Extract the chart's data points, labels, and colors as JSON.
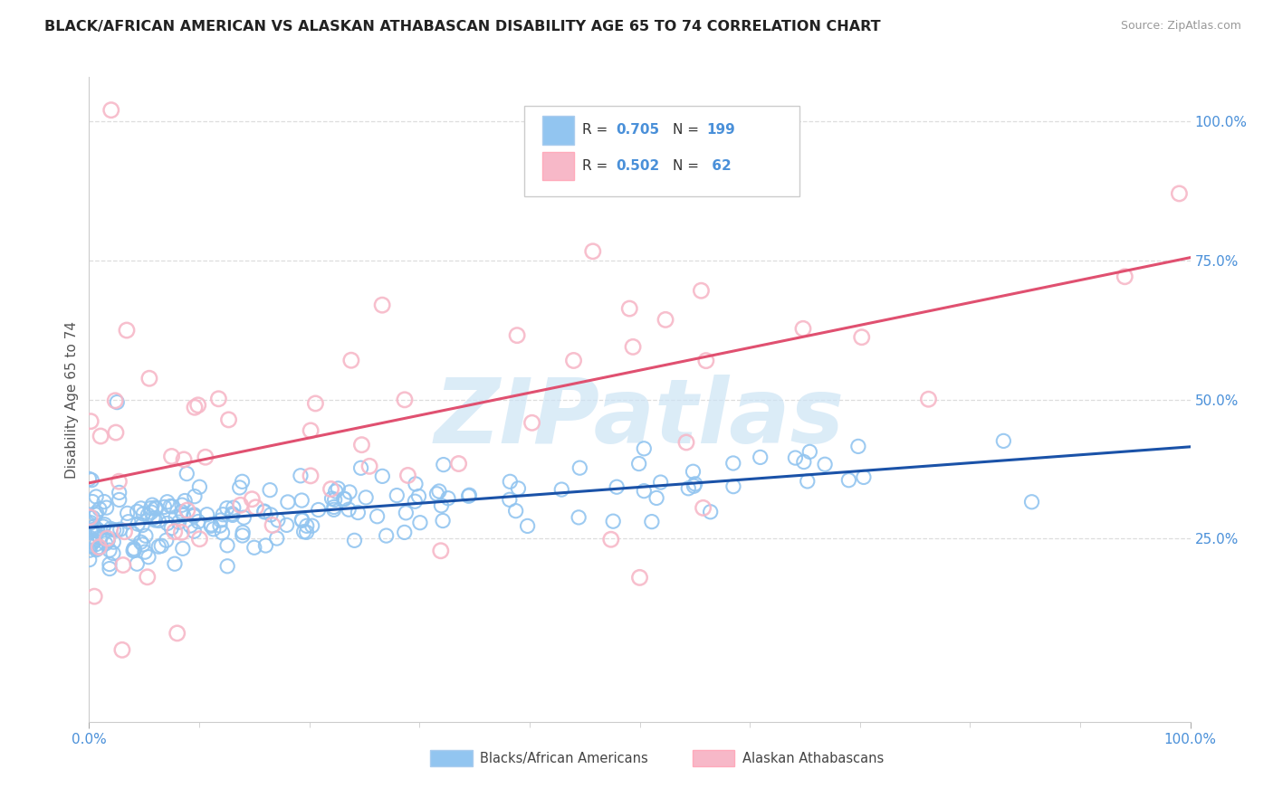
{
  "title": "BLACK/AFRICAN AMERICAN VS ALASKAN ATHABASCAN DISABILITY AGE 65 TO 74 CORRELATION CHART",
  "source_text": "Source: ZipAtlas.com",
  "ylabel": "Disability Age 65 to 74",
  "xlim": [
    0.0,
    1.0
  ],
  "ylim": [
    -0.08,
    1.08
  ],
  "x_ticks": [
    0.0,
    1.0
  ],
  "x_tick_labels": [
    "0.0%",
    "100.0%"
  ],
  "y_ticks": [
    0.25,
    0.5,
    0.75,
    1.0
  ],
  "y_tick_labels": [
    "25.0%",
    "50.0%",
    "75.0%",
    "100.0%"
  ],
  "blue_R": 0.705,
  "blue_N": 199,
  "pink_R": 0.502,
  "pink_N": 62,
  "blue_scatter_color": "#92c5f0",
  "pink_scatter_color": "#f7b8c8",
  "blue_line_color": "#1a52a8",
  "pink_line_color": "#e05070",
  "legend_blue_label": "Blacks/African Americans",
  "legend_pink_label": "Alaskan Athabascans",
  "watermark_text": "ZIPatlas",
  "watermark_color": "#cde4f5",
  "background_color": "#ffffff",
  "grid_color": "#dddddd",
  "title_fontsize": 11.5,
  "legend_text_color": "#333333",
  "legend_val_color": "#4a90d9",
  "blue_line_start_y": 0.27,
  "blue_line_end_y": 0.415,
  "pink_line_start_y": 0.35,
  "pink_line_end_y": 0.755,
  "tick_label_color": "#4a90d9"
}
